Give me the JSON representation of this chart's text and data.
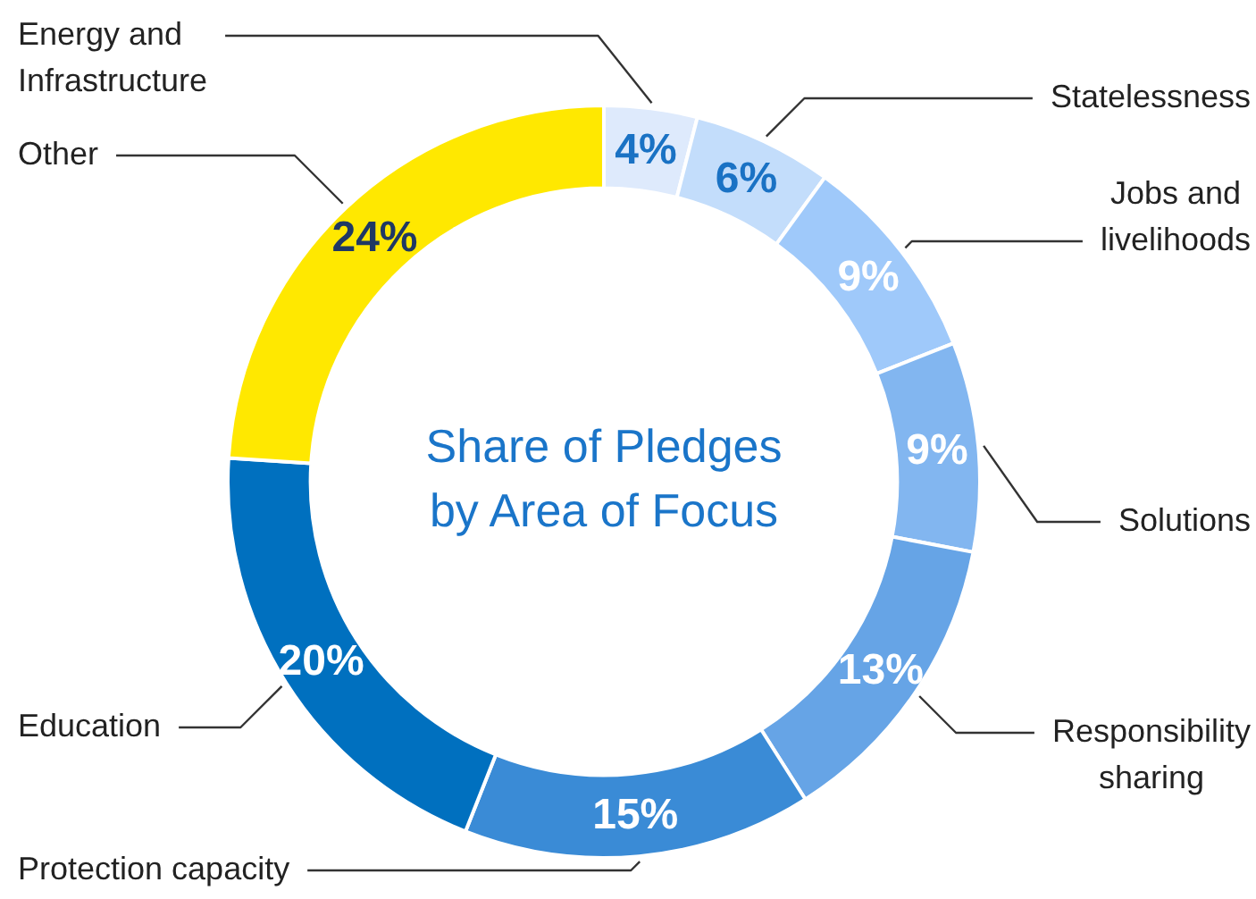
{
  "chart_data": {
    "type": "donut",
    "title": "Share of Pledges by Area of Focus",
    "categories": [
      "Energy and Infrastructure",
      "Statelessness",
      "Jobs and livelihoods",
      "Solutions",
      "Responsibility sharing",
      "Protection capacity",
      "Education",
      "Other"
    ],
    "values": [
      4,
      6,
      9,
      9,
      13,
      15,
      20,
      24
    ],
    "value_labels": [
      "4%",
      "6%",
      "9%",
      "9%",
      "13%",
      "15%",
      "20%",
      "24%"
    ],
    "colors": [
      "#deeafc",
      "#c3ddfb",
      "#9fc9fa",
      "#82b6f0",
      "#66a4e6",
      "#3a8bd6",
      "#0070bf",
      "#ffe800"
    ],
    "legend": false
  }
}
